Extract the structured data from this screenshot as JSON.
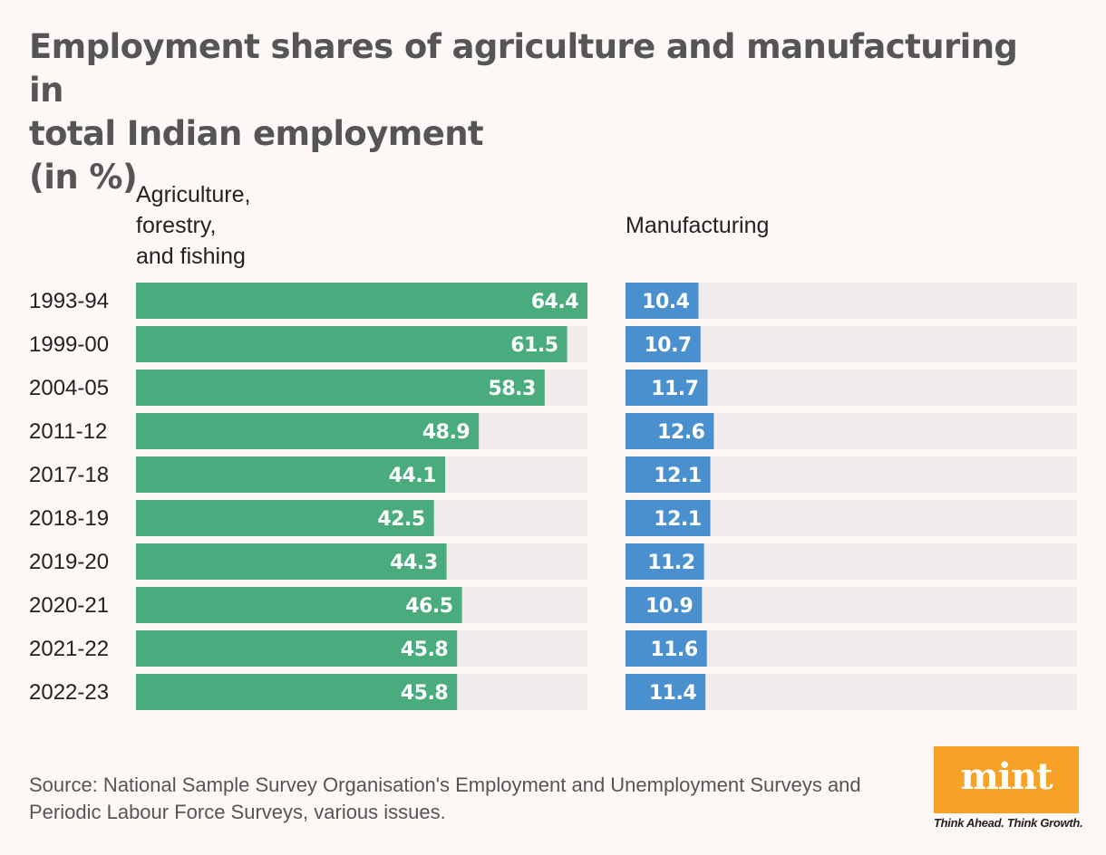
{
  "title": {
    "line1": "Employment shares of agriculture and manufacturing in",
    "line2": "total Indian employment",
    "line3": "(in %)"
  },
  "headers": {
    "agriculture": [
      "Agriculture,",
      "forestry,",
      "and fishing"
    ],
    "manufacturing": "Manufacturing"
  },
  "colors": {
    "agriculture": "#4aab7e",
    "manufacturing": "#4a90cf",
    "track": "#f1eceb",
    "background": "#fdf8f6",
    "logo": "#f7a226"
  },
  "chart_data": {
    "type": "bar",
    "orientation": "horizontal",
    "categories": [
      "1993-94",
      "1999-00",
      "2004-05",
      "2011-12",
      "2017-18",
      "2018-19",
      "2019-20",
      "2020-21",
      "2021-22",
      "2022-23"
    ],
    "series": [
      {
        "name": "Agriculture, forestry, and fishing",
        "values": [
          64.4,
          61.5,
          58.3,
          48.9,
          44.1,
          42.5,
          44.3,
          46.5,
          45.8,
          45.8
        ]
      },
      {
        "name": "Manufacturing",
        "values": [
          10.4,
          10.7,
          11.7,
          12.6,
          12.1,
          12.1,
          11.2,
          10.9,
          11.6,
          11.4
        ]
      }
    ],
    "xlim": [
      0,
      64.4
    ],
    "grid": false,
    "data_labels": true
  },
  "source": "Source: National Sample Survey Organisation's Employment and Unemployment Surveys and Periodic Labour Force Surveys, various issues.",
  "logo": {
    "word": "mint",
    "tagline": "Think Ahead. Think Growth."
  }
}
